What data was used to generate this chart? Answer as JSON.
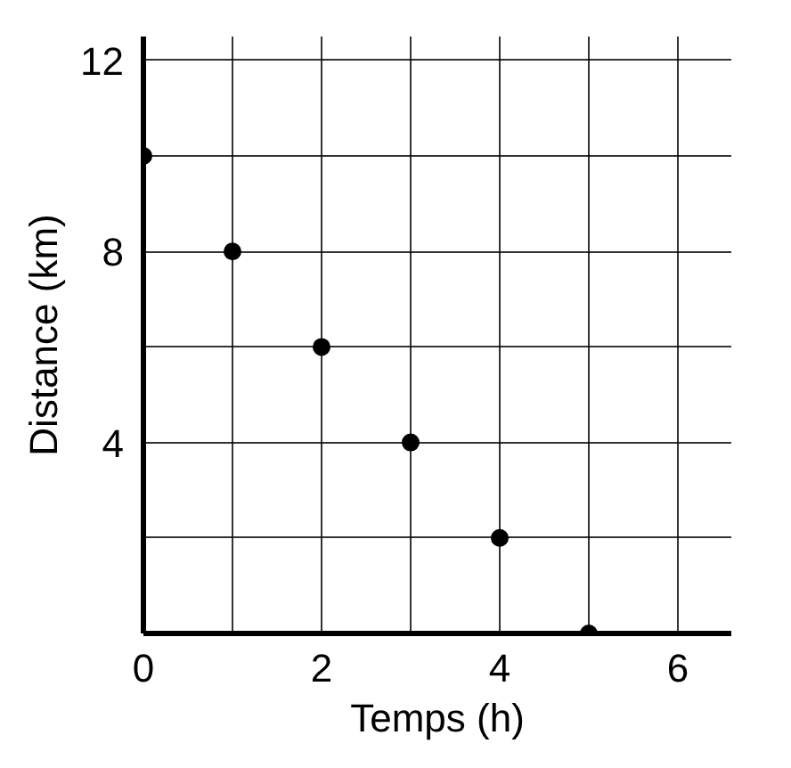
{
  "chart_data": {
    "type": "scatter",
    "xlabel": "Temps (h)",
    "ylabel": "Distance (km)",
    "x": [
      0,
      1,
      2,
      3,
      4,
      5
    ],
    "series": [
      {
        "color": "#000000",
        "values": [
          10,
          8,
          6,
          4,
          2,
          0
        ]
      }
    ],
    "xlim": [
      0,
      6.6
    ],
    "ylim": [
      0,
      12.5
    ],
    "xticks": [
      0,
      {
        "value": 1,
        "label": null
      },
      2,
      {
        "value": 3,
        "label": null
      },
      4,
      {
        "value": 5,
        "label": null
      },
      6
    ],
    "yticks": [
      {
        "value": 2,
        "label": null
      },
      4,
      {
        "value": 6,
        "label": null
      },
      8,
      {
        "value": 10,
        "label": null
      },
      12
    ],
    "grid": true,
    "marker": "circle"
  }
}
